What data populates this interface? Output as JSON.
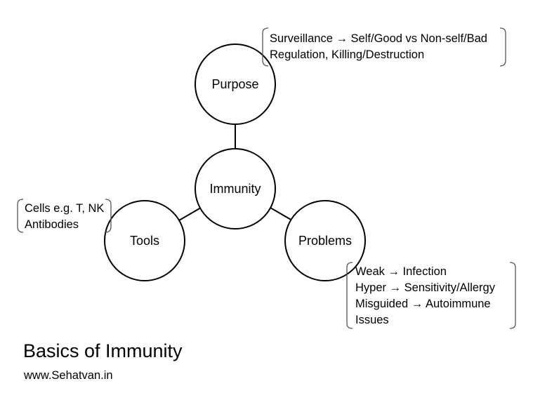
{
  "title": "Basics of Immunity",
  "source": "www.Sehatvan.in",
  "nodes": {
    "center": "Immunity",
    "purpose": "Purpose",
    "tools": "Tools",
    "problems": "Problems"
  },
  "notes": {
    "purpose": [
      "Surveillance → Self/Good vs Non-self/Bad",
      "Regulation, Killing/Destruction"
    ],
    "tools": [
      "Cells e.g. T, NK",
      "Antibodies"
    ],
    "problems": [
      "Weak → Infection",
      "Hyper → Sensitivity/Allergy",
      "Misguided → Autoimmune",
      "Issues"
    ]
  },
  "colors": {
    "stroke": "#000000",
    "fill": "#ffffff",
    "bracket": "#555555"
  }
}
